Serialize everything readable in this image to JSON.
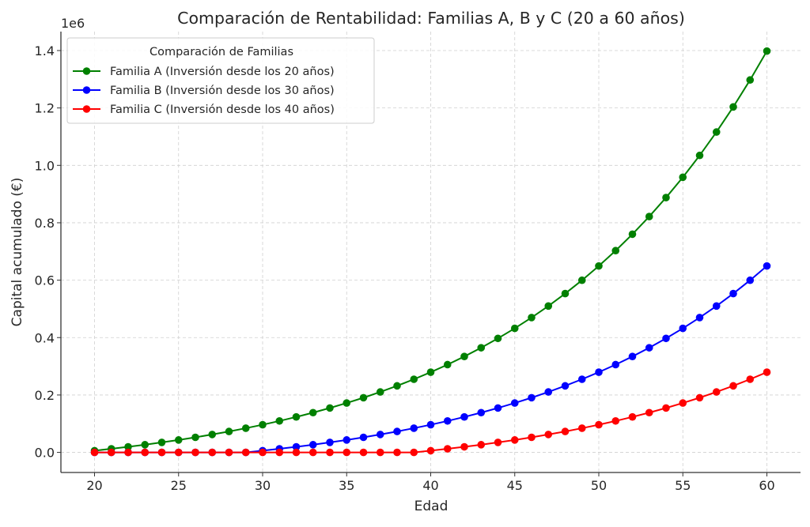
{
  "chart_data": {
    "type": "line",
    "title": "Comparación de Rentabilidad: Familias A, B y C (20 a 60 años)",
    "xlabel": "Edad",
    "ylabel": "Capital acumulado (€)",
    "y_offset_label": "1e6",
    "xlim": [
      18,
      62
    ],
    "ylim": [
      -70000,
      1466000
    ],
    "x_ticks": [
      20,
      25,
      30,
      35,
      40,
      45,
      50,
      55,
      60
    ],
    "y_ticks": [
      0,
      200000,
      400000,
      600000,
      800000,
      1000000,
      1200000,
      1400000
    ],
    "y_tick_labels": [
      "0.0",
      "0.2",
      "0.4",
      "0.6",
      "0.8",
      "1.0",
      "1.2",
      "1.4"
    ],
    "grid": true,
    "legend": {
      "title": "Comparación de Familias",
      "placement": "top-left"
    },
    "x": [
      20,
      21,
      22,
      23,
      24,
      25,
      26,
      27,
      28,
      29,
      30,
      31,
      32,
      33,
      34,
      35,
      36,
      37,
      38,
      39,
      40,
      41,
      42,
      43,
      44,
      45,
      46,
      47,
      48,
      49,
      50,
      51,
      52,
      53,
      54,
      55,
      56,
      57,
      58,
      59,
      60
    ],
    "series": [
      {
        "name": "Familia A (Inversión desde los 20 años)",
        "color": "#008000",
        "values": [
          6000,
          12500,
          19400,
          26800,
          34800,
          43300,
          52500,
          62400,
          72900,
          84300,
          96400,
          109500,
          123500,
          138500,
          154700,
          172000,
          190500,
          210500,
          231800,
          254800,
          279400,
          305800,
          334100,
          364500,
          397200,
          432200,
          469700,
          510000,
          553300,
          599700,
          649500,
          702900,
          760200,
          821700,
          887800,
          958600,
          1034600,
          1116100,
          1203600,
          1297500,
          1398200
        ]
      },
      {
        "name": "Familia B (Inversión desde los 30 años)",
        "color": "#0000ff",
        "values": [
          0,
          0,
          0,
          0,
          0,
          0,
          0,
          0,
          0,
          0,
          6000,
          12500,
          19400,
          26800,
          34800,
          43300,
          52500,
          62400,
          72900,
          84300,
          96400,
          109500,
          123500,
          138500,
          154700,
          172000,
          190500,
          210500,
          231800,
          254800,
          279400,
          305800,
          334100,
          364500,
          397200,
          432200,
          469700,
          510000,
          553300,
          599700,
          649500
        ]
      },
      {
        "name": "Familia C (Inversión desde los 40 años)",
        "color": "#ff0000",
        "values": [
          0,
          0,
          0,
          0,
          0,
          0,
          0,
          0,
          0,
          0,
          0,
          0,
          0,
          0,
          0,
          0,
          0,
          0,
          0,
          0,
          6000,
          12500,
          19400,
          26800,
          34800,
          43300,
          52500,
          62400,
          72900,
          84300,
          96400,
          109500,
          123500,
          138500,
          154700,
          172000,
          190500,
          210500,
          231800,
          254800,
          279400
        ]
      }
    ]
  }
}
